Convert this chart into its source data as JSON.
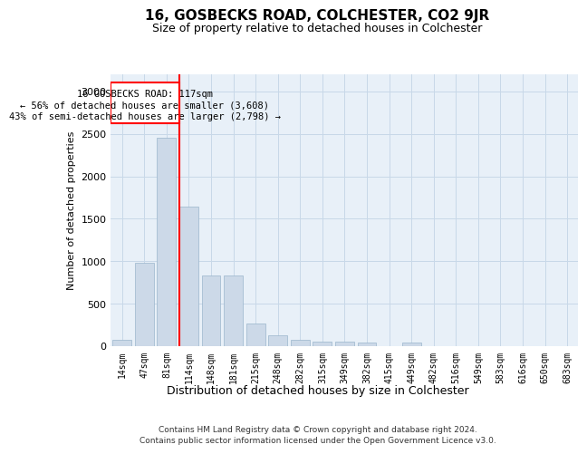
{
  "title": "16, GOSBECKS ROAD, COLCHESTER, CO2 9JR",
  "subtitle": "Size of property relative to detached houses in Colchester",
  "xlabel": "Distribution of detached houses by size in Colchester",
  "ylabel": "Number of detached properties",
  "categories": [
    "14sqm",
    "47sqm",
    "81sqm",
    "114sqm",
    "148sqm",
    "181sqm",
    "215sqm",
    "248sqm",
    "282sqm",
    "315sqm",
    "349sqm",
    "382sqm",
    "415sqm",
    "449sqm",
    "482sqm",
    "516sqm",
    "549sqm",
    "583sqm",
    "616sqm",
    "650sqm",
    "683sqm"
  ],
  "values": [
    70,
    980,
    2450,
    1640,
    830,
    830,
    265,
    130,
    70,
    55,
    55,
    45,
    0,
    45,
    0,
    0,
    0,
    0,
    0,
    0,
    0
  ],
  "bar_color": "#ccd9e8",
  "bar_edge_color": "#9ab5cc",
  "red_line_x": 3,
  "annotation_title": "16 GOSBECKS ROAD: 117sqm",
  "annotation_line1": "← 56% of detached houses are smaller (3,608)",
  "annotation_line2": "43% of semi-detached houses are larger (2,798) →",
  "ylim": [
    0,
    3200
  ],
  "yticks": [
    0,
    500,
    1000,
    1500,
    2000,
    2500,
    3000
  ],
  "footer_line1": "Contains HM Land Registry data © Crown copyright and database right 2024.",
  "footer_line2": "Contains public sector information licensed under the Open Government Licence v3.0."
}
